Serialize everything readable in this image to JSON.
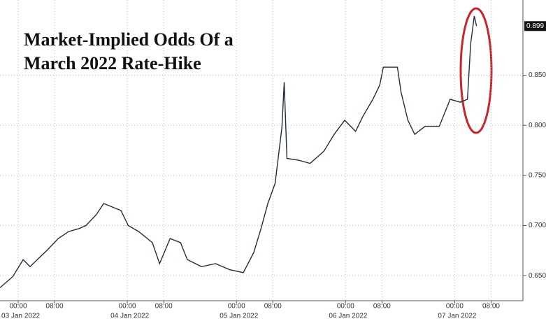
{
  "chart_data": {
    "type": "line",
    "title": "Market-Implied Odds Of a March 2022 Rate-Hike",
    "x": [
      -4,
      -1.2,
      1.1,
      2.6,
      4.2,
      6.5,
      8.8,
      11.1,
      13.4,
      14.9,
      17.2,
      18.8,
      22.6,
      24.2,
      26.5,
      29.5,
      31.1,
      33.4,
      35.7,
      37.2,
      40.3,
      43.4,
      46.5,
      49.5,
      51.8,
      53.4,
      54.9,
      56.5,
      58,
      58.5,
      59.1,
      61.8,
      64.2,
      67.2,
      69.5,
      71.8,
      74.2,
      75.7,
      78,
      79.5,
      80.3,
      83.4,
      84.2,
      85.7,
      87.2,
      89.5,
      92.6,
      95,
      97.2,
      98.8,
      99.5,
      100.3,
      100.8
    ],
    "series": [
      {
        "color": "#1f2d3d",
        "values": [
          0.638,
          0.649,
          0.666,
          0.659,
          0.666,
          0.676,
          0.687,
          0.694,
          0.697,
          0.7,
          0.711,
          0.722,
          0.715,
          0.7,
          0.694,
          0.683,
          0.662,
          0.687,
          0.683,
          0.666,
          0.659,
          0.662,
          0.656,
          0.653,
          0.673,
          0.697,
          0.722,
          0.742,
          0.798,
          0.843,
          0.767,
          0.765,
          0.762,
          0.774,
          0.791,
          0.805,
          0.794,
          0.808,
          0.826,
          0.84,
          0.858,
          0.858,
          0.833,
          0.805,
          0.791,
          0.799,
          0.799,
          0.826,
          0.823,
          0.826,
          0.881,
          0.909,
          0.899
        ]
      }
    ],
    "xlim": [
      -4,
      111
    ],
    "ylim": [
      0.625,
      0.925
    ],
    "yticks": [
      {
        "value": 0.65,
        "label": "0.650"
      },
      {
        "value": 0.7,
        "label": "0.700"
      },
      {
        "value": 0.75,
        "label": "0.750"
      },
      {
        "value": 0.8,
        "label": "0.800"
      },
      {
        "value": 0.85,
        "label": "0.850"
      }
    ],
    "last_value": {
      "value": 0.899,
      "label": "0.899"
    },
    "xticks": [
      {
        "value": 0,
        "label": "00:00"
      },
      {
        "value": 8,
        "label": "08:00"
      },
      {
        "value": 24,
        "label": "00:00"
      },
      {
        "value": 32,
        "label": "08:00"
      },
      {
        "value": 48,
        "label": "00:00"
      },
      {
        "value": 56,
        "label": "08:00"
      },
      {
        "value": 72,
        "label": "00:00"
      },
      {
        "value": 80,
        "label": "08:00"
      },
      {
        "value": 96,
        "label": "00:00"
      },
      {
        "value": 104,
        "label": "08:00"
      }
    ],
    "date_labels": [
      {
        "value": 0,
        "label": "03 Jan 2022"
      },
      {
        "value": 24,
        "label": "04 Jan 2022"
      },
      {
        "value": 48,
        "label": "05 Jan 2022"
      },
      {
        "value": 72,
        "label": "06 Jan 2022"
      },
      {
        "value": 96,
        "label": "07 Jan 2022"
      }
    ],
    "grid": true
  }
}
